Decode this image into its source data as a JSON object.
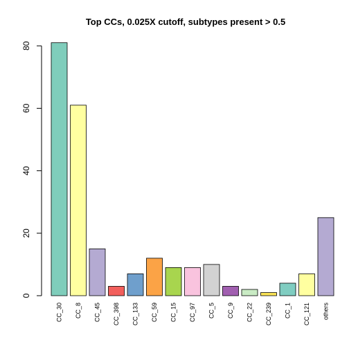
{
  "chart_data": {
    "type": "bar",
    "title": "Top CCs, 0.025X cutoff, subtypes present > 0.5",
    "xlabel": "",
    "ylabel": "",
    "ylim": [
      0,
      85
    ],
    "yticks": [
      0,
      20,
      40,
      60,
      80
    ],
    "grid": false,
    "categories": [
      "CC_30",
      "CC_8",
      "CC_45",
      "CC_398",
      "CC_133",
      "CC_59",
      "CC_15",
      "CC_97",
      "CC_5",
      "CC_9",
      "CC_22",
      "CC_239",
      "CC_1",
      "CC_121",
      "others"
    ],
    "values": [
      81,
      61,
      15,
      3,
      7,
      12,
      9,
      9,
      10,
      3,
      2,
      1,
      4,
      7,
      25
    ],
    "colors": [
      "#7FCDBB",
      "#FFFFA0",
      "#B4AAD2",
      "#F25F5C",
      "#6F9FCC",
      "#FBA346",
      "#A8D54E",
      "#F9C3DE",
      "#D2D2D2",
      "#A15FB0",
      "#C9EBC4",
      "#FDE658",
      "#80CDC1",
      "#FFFFA0",
      "#B4AAD2"
    ]
  }
}
